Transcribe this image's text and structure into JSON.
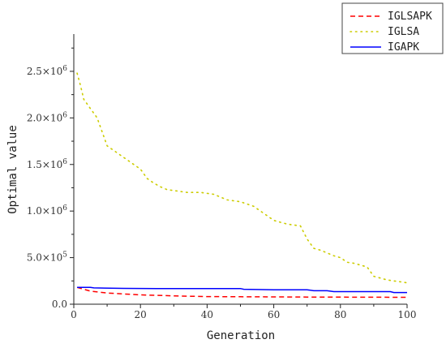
{
  "chart_data": {
    "type": "line",
    "xlabel": "Generation",
    "ylabel": "Optimal value",
    "xlim": [
      0,
      100
    ],
    "ylim": [
      0,
      2900000
    ],
    "x_ticks": [
      0,
      20,
      40,
      60,
      80,
      100
    ],
    "x_tick_labels": [
      "0",
      "20",
      "40",
      "60",
      "80",
      "100"
    ],
    "y_ticks": [
      0,
      500000,
      1000000,
      1500000,
      2000000,
      2500000
    ],
    "y_tick_labels": [
      {
        "mantissa": "0.0",
        "exp": ""
      },
      {
        "mantissa": "5.0×10",
        "exp": "5"
      },
      {
        "mantissa": "1.0×10",
        "exp": "6"
      },
      {
        "mantissa": "1.5×10",
        "exp": "6"
      },
      {
        "mantissa": "2.0×10",
        "exp": "6"
      },
      {
        "mantissa": "2.5×10",
        "exp": "6"
      }
    ],
    "grid": false,
    "legend_position": "top-right",
    "series": [
      {
        "name": "IGLSAPK",
        "color": "#ff0000",
        "style": "dashed",
        "x": [
          1,
          3,
          5,
          10,
          15,
          20,
          25,
          30,
          35,
          40,
          50,
          60,
          70,
          80,
          90,
          100
        ],
        "y": [
          180000,
          160000,
          140000,
          120000,
          110000,
          100000,
          95000,
          90000,
          85000,
          82000,
          80000,
          78000,
          77000,
          76000,
          75000,
          74000
        ]
      },
      {
        "name": "IGLSA",
        "color": "#cccc00",
        "style": "dotted",
        "x": [
          1,
          2,
          3,
          4,
          5,
          6,
          7,
          8,
          9,
          10,
          12,
          14,
          16,
          18,
          20,
          22,
          24,
          26,
          28,
          30,
          34,
          38,
          42,
          46,
          50,
          54,
          56,
          58,
          60,
          62,
          64,
          66,
          68,
          70,
          72,
          74,
          76,
          78,
          80,
          82,
          84,
          86,
          88,
          90,
          92,
          94,
          96,
          98,
          100
        ],
        "y": [
          2480000,
          2350000,
          2200000,
          2150000,
          2100000,
          2050000,
          2000000,
          1900000,
          1800000,
          1700000,
          1650000,
          1600000,
          1550000,
          1500000,
          1450000,
          1350000,
          1300000,
          1260000,
          1230000,
          1220000,
          1200000,
          1200000,
          1180000,
          1120000,
          1100000,
          1050000,
          1000000,
          950000,
          900000,
          880000,
          860000,
          850000,
          840000,
          700000,
          600000,
          580000,
          550000,
          520000,
          500000,
          450000,
          440000,
          420000,
          400000,
          300000,
          280000,
          260000,
          250000,
          240000,
          230000
        ]
      },
      {
        "name": "IGAPK",
        "color": "#0000ff",
        "style": "solid",
        "x": [
          1,
          5,
          6,
          15,
          25,
          35,
          50,
          51,
          55,
          60,
          70,
          72,
          76,
          78,
          80,
          85,
          90,
          95,
          96,
          100
        ],
        "y": [
          180000,
          180000,
          175000,
          170000,
          168000,
          168000,
          168000,
          160000,
          158000,
          155000,
          155000,
          145000,
          145000,
          135000,
          135000,
          135000,
          135000,
          135000,
          125000,
          125000
        ]
      }
    ]
  }
}
